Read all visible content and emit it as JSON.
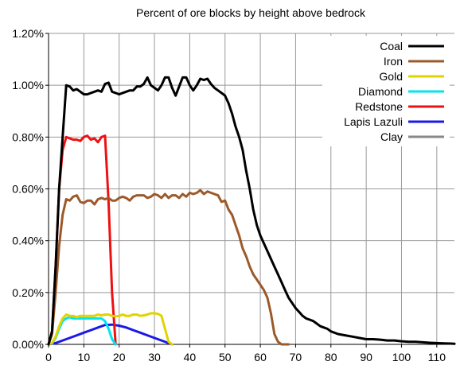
{
  "chart_data": {
    "type": "line",
    "title": "Percent of ore blocks by height above bedrock",
    "xlabel": "",
    "ylabel": "",
    "xlim": [
      0,
      115
    ],
    "ylim": [
      0,
      1.2
    ],
    "x_ticks": [
      0,
      10,
      20,
      30,
      40,
      50,
      60,
      70,
      80,
      90,
      100,
      110
    ],
    "y_ticks": [
      0,
      0.2,
      0.4,
      0.6,
      0.8,
      1.0,
      1.2
    ],
    "y_tick_labels": [
      "0.00%",
      "0.20%",
      "0.40%",
      "0.60%",
      "0.80%",
      "1.00%",
      "1.20%"
    ],
    "x_tick_labels": [
      "0",
      "10",
      "20",
      "30",
      "40",
      "50",
      "60",
      "70",
      "80",
      "90",
      "100",
      "110"
    ],
    "grid": true,
    "legend_position": "top-right",
    "series": [
      {
        "name": "Coal",
        "color": "#000000",
        "x": [
          0,
          1,
          2,
          3,
          4,
          5,
          6,
          7,
          8,
          9,
          10,
          11,
          12,
          13,
          14,
          15,
          16,
          17,
          18,
          19,
          20,
          21,
          22,
          23,
          24,
          25,
          26,
          27,
          28,
          29,
          30,
          31,
          32,
          33,
          34,
          35,
          36,
          37,
          38,
          39,
          40,
          41,
          42,
          43,
          44,
          45,
          46,
          47,
          48,
          49,
          50,
          51,
          52,
          53,
          54,
          55,
          56,
          57,
          58,
          59,
          60,
          61,
          62,
          63,
          64,
          65,
          66,
          67,
          68,
          69,
          70,
          71,
          72,
          73,
          74,
          75,
          76,
          77,
          78,
          79,
          80,
          82,
          84,
          86,
          88,
          90,
          92,
          94,
          96,
          98,
          100,
          102,
          104,
          106,
          108,
          110,
          112,
          114,
          115
        ],
        "y": [
          0.0,
          0.05,
          0.3,
          0.6,
          0.8,
          1.0,
          0.995,
          0.98,
          0.985,
          0.975,
          0.965,
          0.965,
          0.97,
          0.975,
          0.98,
          0.975,
          1.005,
          1.01,
          0.975,
          0.97,
          0.965,
          0.97,
          0.975,
          0.98,
          0.98,
          0.995,
          0.995,
          1.005,
          1.03,
          1.0,
          0.99,
          0.98,
          1.0,
          1.03,
          1.03,
          0.99,
          0.96,
          0.995,
          1.03,
          1.03,
          1.0,
          0.98,
          1.0,
          1.025,
          1.02,
          1.025,
          1.005,
          0.99,
          0.98,
          0.97,
          0.96,
          0.93,
          0.89,
          0.84,
          0.8,
          0.75,
          0.67,
          0.6,
          0.52,
          0.46,
          0.42,
          0.39,
          0.36,
          0.33,
          0.3,
          0.27,
          0.24,
          0.21,
          0.18,
          0.16,
          0.14,
          0.125,
          0.11,
          0.1,
          0.095,
          0.09,
          0.08,
          0.07,
          0.065,
          0.06,
          0.05,
          0.04,
          0.035,
          0.03,
          0.025,
          0.02,
          0.02,
          0.018,
          0.015,
          0.015,
          0.012,
          0.01,
          0.01,
          0.008,
          0.006,
          0.005,
          0.004,
          0.003,
          0.002
        ]
      },
      {
        "name": "Iron",
        "color": "#9c5a2a",
        "x": [
          0,
          1,
          2,
          3,
          4,
          5,
          6,
          7,
          8,
          9,
          10,
          11,
          12,
          13,
          14,
          15,
          16,
          17,
          18,
          19,
          20,
          21,
          22,
          23,
          24,
          25,
          26,
          27,
          28,
          29,
          30,
          31,
          32,
          33,
          34,
          35,
          36,
          37,
          38,
          39,
          40,
          41,
          42,
          43,
          44,
          45,
          46,
          47,
          48,
          49,
          50,
          51,
          52,
          53,
          54,
          55,
          56,
          57,
          58,
          59,
          60,
          61,
          62,
          63,
          64,
          65,
          66,
          67,
          68
        ],
        "y": [
          0.0,
          0.04,
          0.2,
          0.38,
          0.5,
          0.56,
          0.555,
          0.57,
          0.575,
          0.55,
          0.545,
          0.555,
          0.555,
          0.54,
          0.56,
          0.565,
          0.56,
          0.565,
          0.555,
          0.555,
          0.565,
          0.57,
          0.565,
          0.555,
          0.57,
          0.575,
          0.575,
          0.575,
          0.565,
          0.57,
          0.58,
          0.575,
          0.565,
          0.58,
          0.565,
          0.575,
          0.575,
          0.565,
          0.58,
          0.57,
          0.585,
          0.58,
          0.585,
          0.595,
          0.58,
          0.59,
          0.585,
          0.58,
          0.575,
          0.55,
          0.555,
          0.52,
          0.5,
          0.46,
          0.42,
          0.37,
          0.34,
          0.3,
          0.27,
          0.25,
          0.23,
          0.21,
          0.18,
          0.12,
          0.04,
          0.01,
          0.0,
          0.0,
          0.0
        ]
      },
      {
        "name": "Gold",
        "color": "#e0d400",
        "x": [
          0,
          1,
          2,
          3,
          4,
          5,
          6,
          7,
          8,
          9,
          10,
          11,
          12,
          13,
          14,
          15,
          16,
          17,
          18,
          19,
          20,
          21,
          22,
          23,
          24,
          25,
          26,
          27,
          28,
          29,
          30,
          31,
          32,
          33,
          34,
          35
        ],
        "y": [
          0.0,
          0.005,
          0.03,
          0.07,
          0.1,
          0.115,
          0.11,
          0.11,
          0.105,
          0.11,
          0.11,
          0.11,
          0.11,
          0.11,
          0.115,
          0.112,
          0.115,
          0.115,
          0.11,
          0.108,
          0.11,
          0.115,
          0.11,
          0.11,
          0.115,
          0.115,
          0.11,
          0.112,
          0.115,
          0.12,
          0.12,
          0.118,
          0.11,
          0.06,
          0.01,
          0.0
        ]
      },
      {
        "name": "Diamond",
        "color": "#00e5ee",
        "x": [
          0,
          1,
          2,
          3,
          4,
          5,
          6,
          7,
          8,
          9,
          10,
          11,
          12,
          13,
          14,
          15,
          16,
          17,
          18,
          19
        ],
        "y": [
          0.0,
          0.004,
          0.025,
          0.06,
          0.09,
          0.1,
          0.105,
          0.1,
          0.1,
          0.1,
          0.1,
          0.1,
          0.1,
          0.1,
          0.1,
          0.1,
          0.09,
          0.06,
          0.02,
          0.0
        ]
      },
      {
        "name": "Redstone",
        "color": "#ee1111",
        "x": [
          0,
          1,
          2,
          3,
          4,
          5,
          6,
          7,
          8,
          9,
          10,
          11,
          12,
          13,
          14,
          15,
          16,
          17,
          18,
          19
        ],
        "y": [
          0.0,
          0.05,
          0.3,
          0.6,
          0.75,
          0.8,
          0.795,
          0.79,
          0.79,
          0.785,
          0.8,
          0.805,
          0.79,
          0.795,
          0.78,
          0.8,
          0.805,
          0.55,
          0.2,
          0.0
        ]
      },
      {
        "name": "Lapis Lazuli",
        "color": "#1a1ae6",
        "x": [
          0,
          2,
          4,
          6,
          8,
          10,
          12,
          14,
          16,
          18,
          20,
          22,
          24,
          26,
          28,
          30,
          32,
          34,
          35
        ],
        "y": [
          0.0,
          0.005,
          0.015,
          0.025,
          0.035,
          0.045,
          0.055,
          0.065,
          0.075,
          0.076,
          0.072,
          0.065,
          0.055,
          0.045,
          0.035,
          0.025,
          0.015,
          0.005,
          0.0
        ]
      },
      {
        "name": "Clay",
        "color": "#888888",
        "x": [],
        "y": []
      }
    ]
  }
}
